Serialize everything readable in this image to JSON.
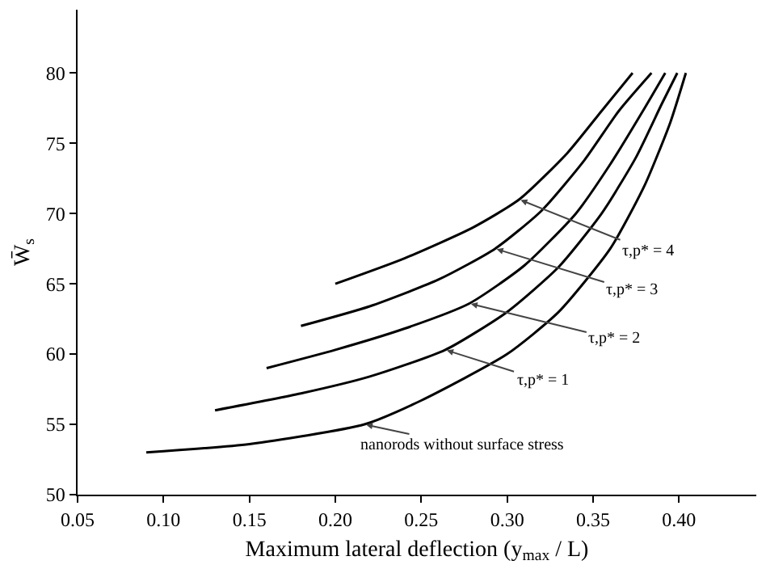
{
  "chart_data": {
    "type": "line",
    "xlabel": "Maximum lateral deflection (y$_{max}$ / L)",
    "ylabel": "W̄$_{s}$",
    "marker": "none",
    "line_style": "solid",
    "grid": false,
    "xlim": [
      0.05,
      0.445
    ],
    "ylim": [
      50,
      84.5
    ],
    "xticks": [
      {
        "value": 0.05,
        "label": "0.05"
      },
      {
        "value": 0.1,
        "label": "0.10"
      },
      {
        "value": 0.15,
        "label": "0.15"
      },
      {
        "value": 0.2,
        "label": "0.20"
      },
      {
        "value": 0.25,
        "label": "0.25"
      },
      {
        "value": 0.3,
        "label": "0.30"
      },
      {
        "value": 0.35,
        "label": "0.35"
      },
      {
        "value": 0.4,
        "label": "0.40"
      }
    ],
    "yticks": [
      50,
      55,
      60,
      65,
      70,
      75,
      80
    ],
    "series": [
      {
        "color": "#000000",
        "x": [
          0.09,
          0.15,
          0.217,
          0.25,
          0.3,
          0.33,
          0.36,
          0.38,
          0.395,
          0.404
        ],
        "values": [
          53,
          53.6,
          55,
          56.7,
          60,
          63,
          67.5,
          72,
          76.5,
          80
        ]
      },
      {
        "color": "#000000",
        "x": [
          0.13,
          0.18,
          0.22,
          0.264,
          0.3,
          0.33,
          0.355,
          0.375,
          0.39,
          0.399
        ],
        "values": [
          56,
          57.2,
          58.4,
          60.3,
          63,
          66.2,
          70,
          74,
          77.8,
          80
        ]
      },
      {
        "color": "#000000",
        "x": [
          0.16,
          0.2,
          0.24,
          0.278,
          0.31,
          0.34,
          0.36,
          0.38,
          0.392
        ],
        "values": [
          59,
          60.3,
          61.8,
          63.6,
          66.3,
          70,
          73.5,
          77.5,
          80
        ]
      },
      {
        "color": "#000000",
        "x": [
          0.18,
          0.22,
          0.26,
          0.293,
          0.32,
          0.345,
          0.365,
          0.384
        ],
        "values": [
          62,
          63.4,
          65.3,
          67.5,
          70.2,
          73.8,
          77.3,
          80
        ]
      },
      {
        "color": "#000000",
        "x": [
          0.2,
          0.24,
          0.28,
          0.307,
          0.335,
          0.355,
          0.373
        ],
        "values": [
          65,
          66.8,
          69,
          71,
          74.3,
          77.3,
          80
        ]
      }
    ],
    "annotations": [
      {
        "text": "τ,p* = 4",
        "x": 0.307,
        "y": 71
      },
      {
        "text": "τ,p* = 3",
        "x": 0.293,
        "y": 67.5
      },
      {
        "text": "τ,p* = 2",
        "x": 0.278,
        "y": 63.6
      },
      {
        "text": "τ,p* = 1",
        "x": 0.264,
        "y": 60.3
      },
      {
        "text": "nanorods without surface stress",
        "x": 0.217,
        "y": 55
      }
    ]
  }
}
